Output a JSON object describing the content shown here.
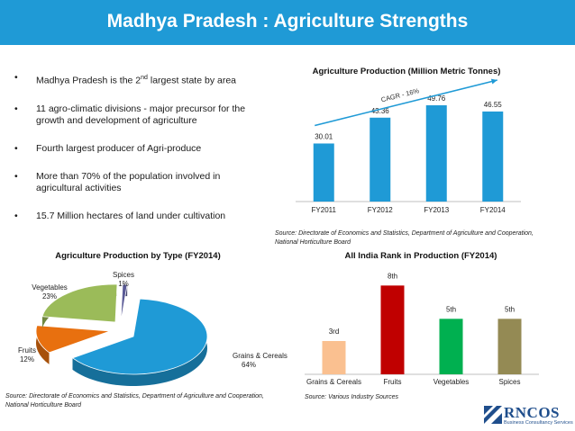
{
  "header": {
    "title": "Madhya Pradesh : Agriculture Strengths"
  },
  "bullets": [
    {
      "pre": "Madhya Pradesh is the 2",
      "sup": "nd",
      "post": " largest state by area"
    },
    {
      "pre": "11 agro-climatic divisions - major precursor for the growth and development of agriculture",
      "sup": "",
      "post": ""
    },
    {
      "pre": "Fourth largest  producer of Agri-produce",
      "sup": "",
      "post": ""
    },
    {
      "pre": "More  than  70%  of  the  population involved  in agricultural activities",
      "sup": "",
      "post": ""
    },
    {
      "pre": "15.7 Million hectares of land under cultivation",
      "sup": "",
      "post": ""
    }
  ],
  "bullet_glyph": "•",
  "chart_data": [
    {
      "type": "bar",
      "title": "Agriculture Production (Million Metric Tonnes)",
      "categories": [
        "FY2011",
        "FY2012",
        "FY2013",
        "FY2014"
      ],
      "values": [
        30.01,
        43.36,
        49.76,
        46.55
      ],
      "value_labels": [
        "30.01",
        "43.36",
        "49.76",
        "46.55"
      ],
      "annotation": "CAGR - 16%",
      "ylim": [
        0,
        60
      ],
      "color": "#1f9ad6"
    },
    {
      "type": "pie",
      "title": "Agriculture Production by Type (FY2014)",
      "slices": [
        {
          "label": "Grains & Cereals",
          "value": 64,
          "display": "64%",
          "color": "#1f9ad6"
        },
        {
          "label": "Fruits",
          "value": 12,
          "display": "12%",
          "color": "#e8700f"
        },
        {
          "label": "Vegetables",
          "value": 23,
          "display": "23%",
          "color": "#9bbb59"
        },
        {
          "label": "Spices",
          "value": 1,
          "display": "1%",
          "color": "#5a5a96"
        }
      ]
    },
    {
      "type": "bar",
      "title": "All India Rank in Production (FY2014)",
      "categories": [
        "Grains & Cereals",
        "Fruits",
        "Vegetables",
        "Spices"
      ],
      "values": [
        3,
        8,
        5,
        5
      ],
      "value_labels": [
        "3rd",
        "8th",
        "5th",
        "5th"
      ],
      "colors": [
        "#fac090",
        "#c00000",
        "#00b050",
        "#948a54"
      ],
      "ylim": [
        0,
        9
      ]
    }
  ],
  "sources": {
    "top_right": "Source: Directorate of Economics and Statistics, Department of Agriculture and Cooperation, National Horticulture Board",
    "bottom_left": "Source: Directorate of Economics and Statistics, Department of Agriculture and Cooperation, National Horticulture Board",
    "bottom_right": "Source: Various Industry Sources"
  },
  "logo": {
    "name": "RNCOS",
    "tagline": "Business Consultancy Services"
  }
}
